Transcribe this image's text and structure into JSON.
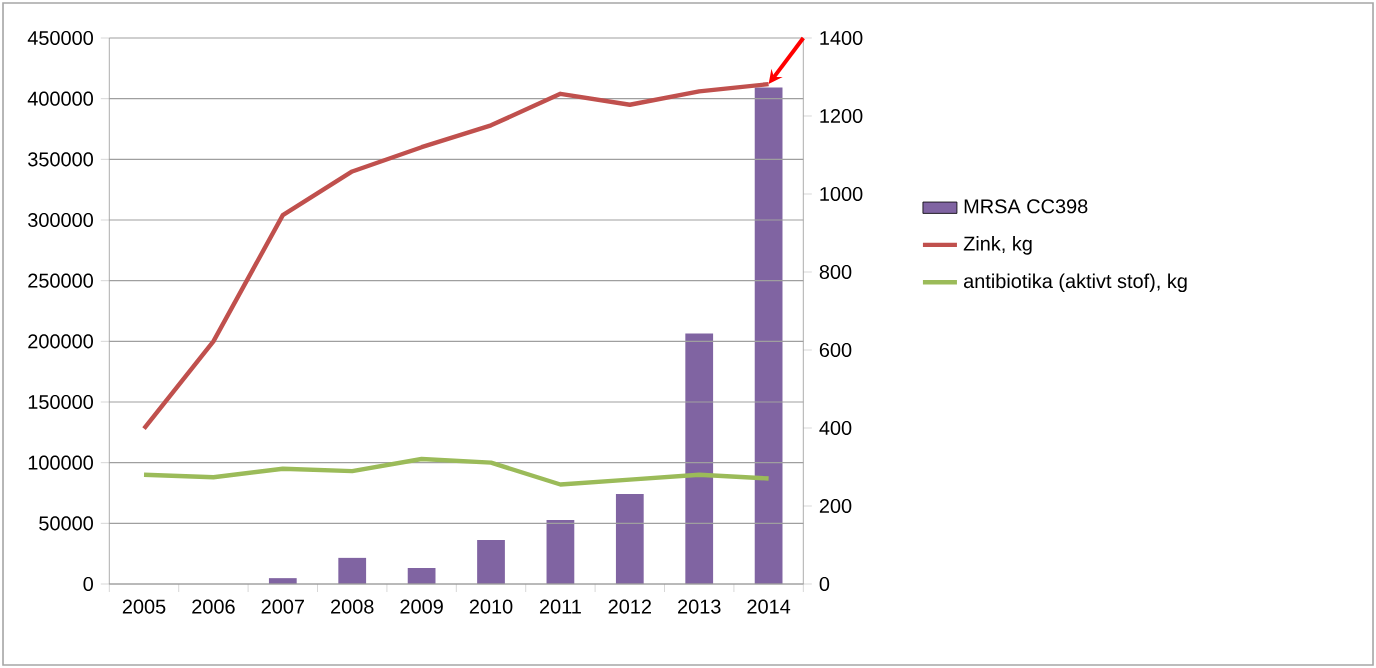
{
  "chart_data": {
    "type": "line",
    "categories": [
      "2005",
      "2006",
      "2007",
      "2008",
      "2009",
      "2010",
      "2011",
      "2012",
      "2013",
      "2014"
    ],
    "series": [
      {
        "name": "MRSA CC398",
        "type": "bar",
        "axis": "y2",
        "color": "#8064a2",
        "values": [
          0,
          0,
          15,
          67,
          41,
          113,
          164,
          231,
          642,
          1273
        ]
      },
      {
        "name": "Zink, kg",
        "color": "#c0504d",
        "values": [
          128000,
          200000,
          304000,
          340000,
          360000,
          378000,
          404000,
          395000,
          406000,
          412000
        ]
      },
      {
        "name": "antibiotika (aktivt stof), kg",
        "color": "#9bbb59",
        "values": [
          90000,
          88000,
          95000,
          93000,
          103000,
          100000,
          82000,
          86000,
          90000,
          87000
        ]
      }
    ],
    "ylim": [
      0,
      450000
    ],
    "yticks": [
      0,
      50000,
      100000,
      150000,
      200000,
      250000,
      300000,
      350000,
      400000,
      450000
    ],
    "y2lim": [
      0,
      1400
    ],
    "y2ticks": [
      0,
      200,
      400,
      600,
      800,
      1000,
      1200,
      1400
    ],
    "grid": "y",
    "legend": "right",
    "marker": "none",
    "line_style": "solid"
  }
}
